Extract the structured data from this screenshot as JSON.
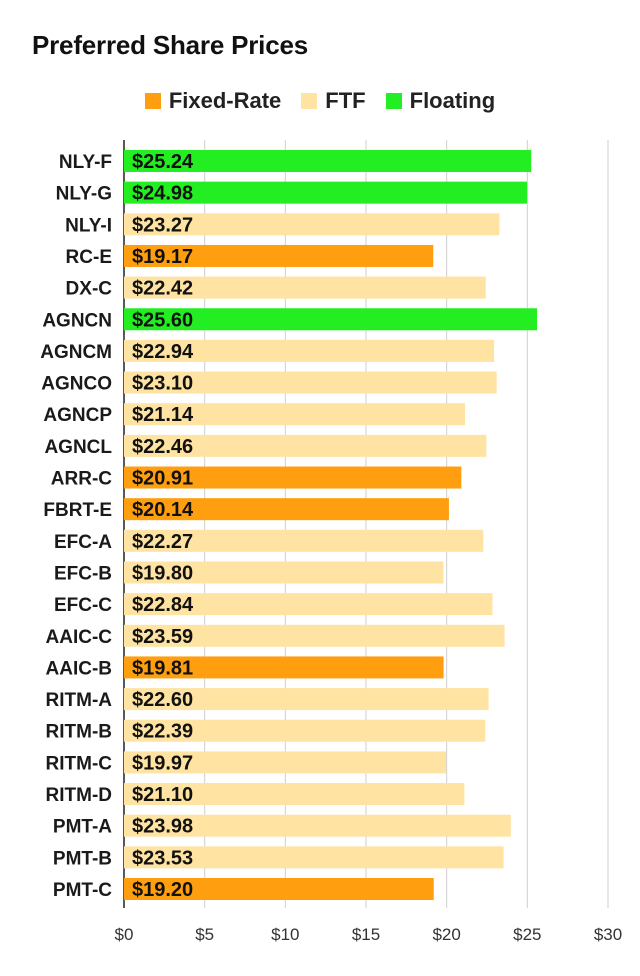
{
  "chart_data": {
    "type": "bar",
    "orientation": "horizontal",
    "title": "Preferred Share Prices",
    "xlim": [
      0,
      30
    ],
    "xticks": [
      "$0",
      "$5",
      "$10",
      "$15",
      "$20",
      "$25",
      "$30"
    ],
    "xtick_values": [
      0,
      5,
      10,
      15,
      20,
      25,
      30
    ],
    "grid": "vertical",
    "legend_position": "top",
    "legend": [
      {
        "name": "Fixed-Rate",
        "color": "#ff9e0f"
      },
      {
        "name": "FTF",
        "color": "#ffe3a3"
      },
      {
        "name": "Floating",
        "color": "#22ee22"
      }
    ],
    "bars": [
      {
        "category": "NLY-F",
        "value": 25.24,
        "label": "$25.24",
        "type": "Floating"
      },
      {
        "category": "NLY-G",
        "value": 24.98,
        "label": "$24.98",
        "type": "Floating"
      },
      {
        "category": "NLY-I",
        "value": 23.27,
        "label": "$23.27",
        "type": "FTF"
      },
      {
        "category": "RC-E",
        "value": 19.17,
        "label": "$19.17",
        "type": "Fixed-Rate"
      },
      {
        "category": "DX-C",
        "value": 22.42,
        "label": "$22.42",
        "type": "FTF"
      },
      {
        "category": "AGNCN",
        "value": 25.6,
        "label": "$25.60",
        "type": "Floating"
      },
      {
        "category": "AGNCM",
        "value": 22.94,
        "label": "$22.94",
        "type": "FTF"
      },
      {
        "category": "AGNCO",
        "value": 23.1,
        "label": "$23.10",
        "type": "FTF"
      },
      {
        "category": "AGNCP",
        "value": 21.14,
        "label": "$21.14",
        "type": "FTF"
      },
      {
        "category": "AGNCL",
        "value": 22.46,
        "label": "$22.46",
        "type": "FTF"
      },
      {
        "category": "ARR-C",
        "value": 20.91,
        "label": "$20.91",
        "type": "Fixed-Rate"
      },
      {
        "category": "FBRT-E",
        "value": 20.14,
        "label": "$20.14",
        "type": "Fixed-Rate"
      },
      {
        "category": "EFC-A",
        "value": 22.27,
        "label": "$22.27",
        "type": "FTF"
      },
      {
        "category": "EFC-B",
        "value": 19.8,
        "label": "$19.80",
        "type": "FTF"
      },
      {
        "category": "EFC-C",
        "value": 22.84,
        "label": "$22.84",
        "type": "FTF"
      },
      {
        "category": "AAIC-C",
        "value": 23.59,
        "label": "$23.59",
        "type": "FTF"
      },
      {
        "category": "AAIC-B",
        "value": 19.81,
        "label": "$19.81",
        "type": "Fixed-Rate"
      },
      {
        "category": "RITM-A",
        "value": 22.6,
        "label": "$22.60",
        "type": "FTF"
      },
      {
        "category": "RITM-B",
        "value": 22.39,
        "label": "$22.39",
        "type": "FTF"
      },
      {
        "category": "RITM-C",
        "value": 19.97,
        "label": "$19.97",
        "type": "FTF"
      },
      {
        "category": "RITM-D",
        "value": 21.1,
        "label": "$21.10",
        "type": "FTF"
      },
      {
        "category": "PMT-A",
        "value": 23.98,
        "label": "$23.98",
        "type": "FTF"
      },
      {
        "category": "PMT-B",
        "value": 23.53,
        "label": "$23.53",
        "type": "FTF"
      },
      {
        "category": "PMT-C",
        "value": 19.2,
        "label": "$19.20",
        "type": "Fixed-Rate"
      }
    ]
  }
}
